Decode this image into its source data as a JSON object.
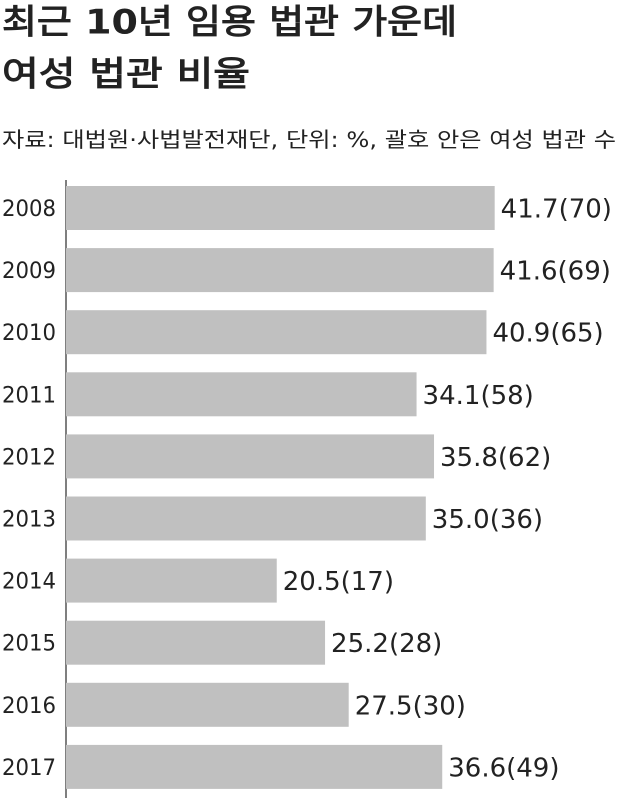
{
  "chart_data": {
    "type": "hbar",
    "title": [
      "최근 10년 임용 법관 가운데",
      "여성 법관 비율"
    ],
    "subtitle": "자료: 대법원·사법발전재단, 단위: %, 괄호 안은 여성 법관 수",
    "categories": [
      "2008",
      "2009",
      "2010",
      "2011",
      "2012",
      "2013",
      "2014",
      "2015",
      "2016",
      "2017"
    ],
    "values": [
      41.7,
      41.6,
      40.9,
      34.1,
      35.8,
      35.0,
      20.5,
      25.2,
      27.5,
      36.6
    ],
    "value_labels": [
      "41.7(70)",
      "41.6(69)",
      "40.9(65)",
      "34.1(58)",
      "35.8(62)",
      "35.0(36)",
      "20.5(17)",
      "25.2(28)",
      "27.5(30)",
      "36.6(49)"
    ],
    "color": "#c0c0c0",
    "xlim": [
      0,
      50
    ]
  }
}
